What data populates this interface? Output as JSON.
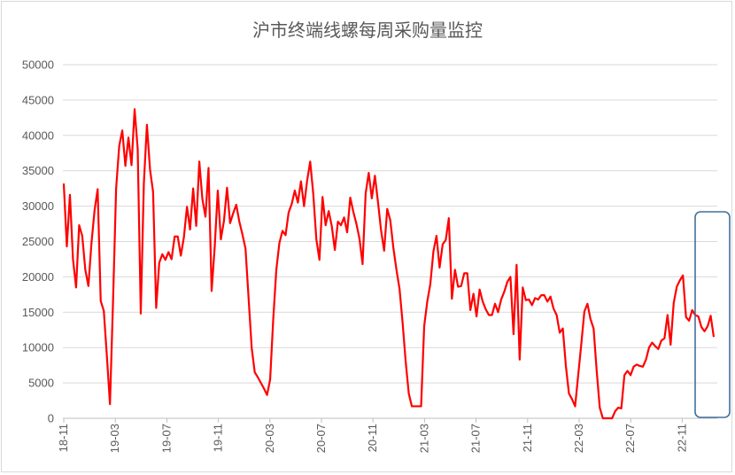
{
  "chart_data": {
    "type": "line",
    "title": "沪市终端线螺每周采购量监控",
    "xlabel": "",
    "ylabel": "",
    "ylim": [
      0,
      50000
    ],
    "yticks": [
      "0",
      "5000",
      "10000",
      "15000",
      "20000",
      "25000",
      "30000",
      "35000",
      "40000",
      "45000",
      "50000"
    ],
    "xticks": [
      "18-11",
      "19-03",
      "19-07",
      "19-11",
      "20-03",
      "20-07",
      "20-11",
      "21-03",
      "21-07",
      "21-11",
      "22-03",
      "22-07",
      "22-11"
    ],
    "grid": "horizontal",
    "legend": "none",
    "series": [
      {
        "color": "#ff0000",
        "values": [
          33200,
          24300,
          31600,
          22500,
          18500,
          27300,
          25800,
          21000,
          18700,
          24800,
          29400,
          32400,
          16600,
          15200,
          8800,
          2000,
          16600,
          32500,
          38500,
          40700,
          35700,
          39700,
          35800,
          43700,
          38100,
          14800,
          33200,
          41500,
          35200,
          32000,
          15600,
          22000,
          23200,
          22400,
          23500,
          22500,
          25700,
          25700,
          23000,
          25600,
          29900,
          26700,
          32500,
          27200,
          36300,
          31000,
          28500,
          35400,
          18000,
          24200,
          32200,
          25300,
          27900,
          32600,
          27600,
          29000,
          30200,
          27800,
          26000,
          24000,
          17000,
          10000,
          6500,
          5800,
          5000,
          4200,
          3300,
          5500,
          14000,
          21000,
          24800,
          26500,
          25900,
          29100,
          30300,
          32200,
          30500,
          33500,
          30000,
          33600,
          36300,
          31700,
          25300,
          22400,
          31300,
          27300,
          29300,
          27200,
          23800,
          27800,
          27300,
          28400,
          26300,
          31200,
          29200,
          27500,
          25400,
          21800,
          31800,
          34700,
          31100,
          34300,
          30600,
          26600,
          23700,
          29600,
          28000,
          24100,
          21000,
          18300,
          13500,
          8000,
          3500,
          1700,
          1700,
          1700,
          1700,
          13000,
          16500,
          19000,
          23600,
          25800,
          21300,
          24600,
          25200,
          28300,
          16900,
          21000,
          18600,
          18700,
          20500,
          20500,
          15300,
          17600,
          14400,
          18200,
          16500,
          15400,
          14600,
          14600,
          16200,
          15000,
          16800,
          17900,
          19300,
          20000,
          11900,
          21700,
          8300,
          18500,
          16700,
          16800,
          16000,
          17000,
          16800,
          17400,
          17400,
          16500,
          17200,
          15500,
          14600,
          12100,
          12700,
          7400,
          3500,
          2700,
          1700,
          6100,
          10500,
          15100,
          16200,
          14000,
          12700,
          6700,
          1500,
          0,
          0,
          0,
          0,
          1000,
          1500,
          1400,
          6100,
          6700,
          6100,
          7300,
          7600,
          7400,
          7300,
          8300,
          10000,
          10700,
          10200,
          9800,
          11000,
          11300,
          14600,
          10400,
          16300,
          18600,
          19500,
          20200,
          14300,
          13800,
          15300,
          14600,
          14400,
          12900,
          12300,
          13000,
          14500,
          11500
        ]
      }
    ]
  }
}
